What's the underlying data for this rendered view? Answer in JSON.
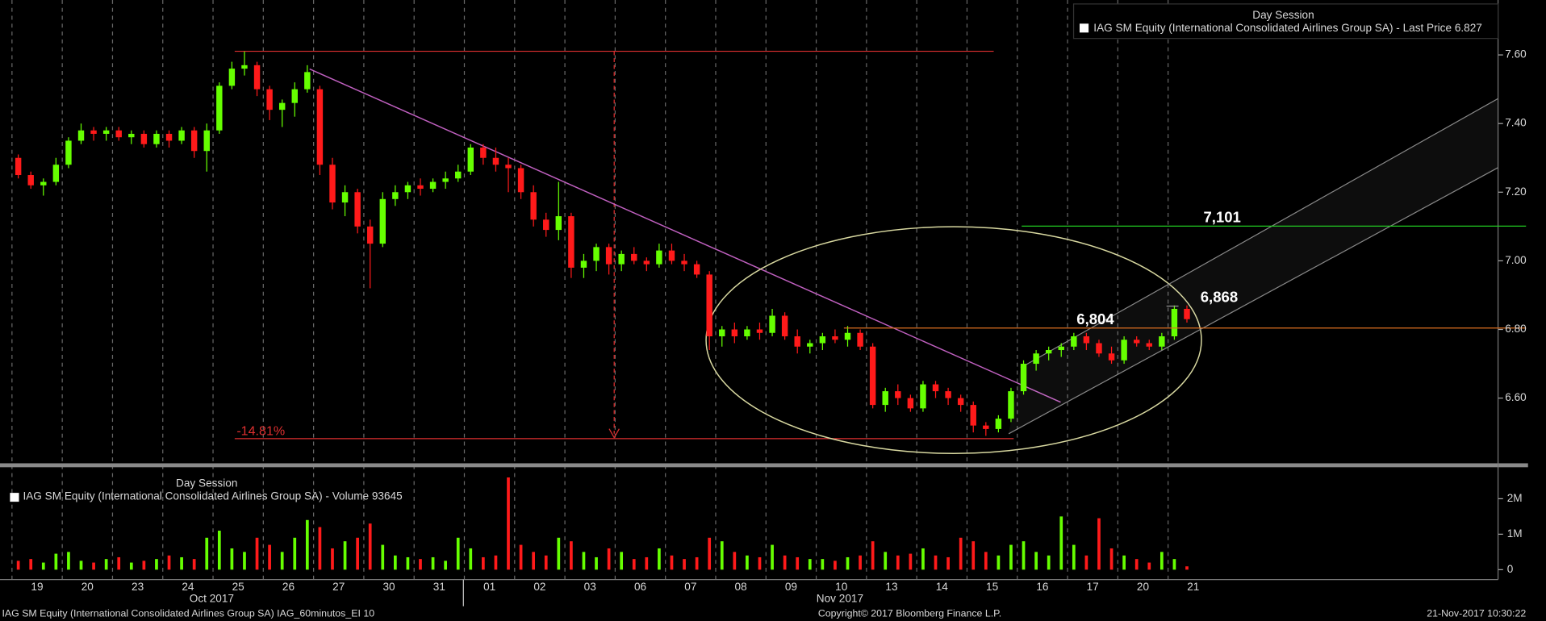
{
  "chart_data": {
    "type": "candlestick",
    "categories": [
      "19",
      "20",
      "23",
      "24",
      "25",
      "26",
      "27",
      "30",
      "31",
      "01",
      "02",
      "03",
      "06",
      "07",
      "08",
      "09",
      "10",
      "13",
      "14",
      "15",
      "16",
      "17",
      "20",
      "21"
    ],
    "month_labels": [
      "Oct 2017",
      "Nov 2017"
    ],
    "ohlc": [
      [
        [
          7.3,
          7.31,
          7.24,
          7.25
        ],
        [
          7.25,
          7.26,
          7.21,
          7.22
        ],
        [
          7.22,
          7.24,
          7.19,
          7.23
        ],
        [
          7.23,
          7.3,
          7.22,
          7.28
        ]
      ],
      [
        [
          7.28,
          7.36,
          7.27,
          7.35
        ],
        [
          7.35,
          7.4,
          7.34,
          7.38
        ],
        [
          7.38,
          7.39,
          7.35,
          7.37
        ],
        [
          7.37,
          7.39,
          7.35,
          7.38
        ]
      ],
      [
        [
          7.38,
          7.39,
          7.35,
          7.36
        ],
        [
          7.36,
          7.38,
          7.34,
          7.37
        ],
        [
          7.37,
          7.38,
          7.33,
          7.34
        ],
        [
          7.34,
          7.38,
          7.33,
          7.37
        ]
      ],
      [
        [
          7.37,
          7.38,
          7.33,
          7.35
        ],
        [
          7.35,
          7.39,
          7.34,
          7.38
        ],
        [
          7.38,
          7.39,
          7.3,
          7.32
        ],
        [
          7.32,
          7.4,
          7.26,
          7.38
        ]
      ],
      [
        [
          7.38,
          7.52,
          7.37,
          7.51
        ],
        [
          7.51,
          7.58,
          7.5,
          7.56
        ],
        [
          7.56,
          7.61,
          7.54,
          7.57
        ],
        [
          7.57,
          7.58,
          7.48,
          7.5
        ]
      ],
      [
        [
          7.5,
          7.51,
          7.41,
          7.44
        ],
        [
          7.44,
          7.47,
          7.39,
          7.46
        ],
        [
          7.46,
          7.52,
          7.42,
          7.5
        ],
        [
          7.5,
          7.57,
          7.49,
          7.55
        ]
      ],
      [
        [
          7.5,
          7.51,
          7.25,
          7.28
        ],
        [
          7.28,
          7.3,
          7.15,
          7.17
        ],
        [
          7.17,
          7.22,
          7.13,
          7.2
        ],
        [
          7.2,
          7.21,
          7.08,
          7.1
        ]
      ],
      [
        [
          7.1,
          7.12,
          6.92,
          7.05
        ],
        [
          7.05,
          7.2,
          7.04,
          7.18
        ],
        [
          7.18,
          7.22,
          7.16,
          7.2
        ],
        [
          7.2,
          7.23,
          7.18,
          7.22
        ]
      ],
      [
        [
          7.22,
          7.24,
          7.19,
          7.21
        ],
        [
          7.21,
          7.24,
          7.2,
          7.23
        ],
        [
          7.23,
          7.26,
          7.21,
          7.24
        ],
        [
          7.24,
          7.28,
          7.23,
          7.26
        ]
      ],
      [
        [
          7.26,
          7.34,
          7.25,
          7.33
        ],
        [
          7.33,
          7.34,
          7.28,
          7.3
        ],
        [
          7.3,
          7.33,
          7.26,
          7.28
        ],
        [
          7.28,
          7.3,
          7.2,
          7.27
        ]
      ],
      [
        [
          7.27,
          7.28,
          7.18,
          7.2
        ],
        [
          7.2,
          7.22,
          7.1,
          7.12
        ],
        [
          7.12,
          7.14,
          7.07,
          7.09
        ],
        [
          7.09,
          7.23,
          7.06,
          7.13
        ]
      ],
      [
        [
          7.13,
          7.14,
          6.95,
          6.98
        ],
        [
          6.98,
          7.02,
          6.95,
          7.0
        ],
        [
          7.0,
          7.05,
          6.97,
          7.04
        ],
        [
          7.04,
          7.05,
          6.96,
          6.99
        ]
      ],
      [
        [
          6.99,
          7.03,
          6.97,
          7.02
        ],
        [
          7.02,
          7.04,
          6.99,
          7.0
        ],
        [
          7.0,
          7.01,
          6.97,
          6.99
        ],
        [
          6.99,
          7.05,
          6.98,
          7.03
        ]
      ],
      [
        [
          7.03,
          7.05,
          6.99,
          7.0
        ],
        [
          7.0,
          7.02,
          6.97,
          6.99
        ],
        [
          6.99,
          7.0,
          6.95,
          6.96
        ],
        [
          6.96,
          6.97,
          6.74,
          6.78
        ]
      ],
      [
        [
          6.78,
          6.81,
          6.75,
          6.8
        ],
        [
          6.8,
          6.82,
          6.76,
          6.78
        ],
        [
          6.78,
          6.81,
          6.77,
          6.8
        ],
        [
          6.8,
          6.82,
          6.77,
          6.79
        ]
      ],
      [
        [
          6.79,
          6.86,
          6.78,
          6.84
        ],
        [
          6.84,
          6.85,
          6.77,
          6.78
        ],
        [
          6.78,
          6.8,
          6.73,
          6.75
        ],
        [
          6.75,
          6.77,
          6.73,
          6.76
        ]
      ],
      [
        [
          6.76,
          6.79,
          6.74,
          6.78
        ],
        [
          6.78,
          6.8,
          6.76,
          6.77
        ],
        [
          6.77,
          6.81,
          6.75,
          6.79
        ],
        [
          6.79,
          6.8,
          6.74,
          6.75
        ]
      ],
      [
        [
          6.75,
          6.76,
          6.57,
          6.58
        ],
        [
          6.58,
          6.63,
          6.56,
          6.62
        ],
        [
          6.62,
          6.64,
          6.58,
          6.6
        ],
        [
          6.6,
          6.61,
          6.56,
          6.57
        ]
      ],
      [
        [
          6.57,
          6.65,
          6.56,
          6.64
        ],
        [
          6.64,
          6.65,
          6.6,
          6.62
        ],
        [
          6.62,
          6.63,
          6.58,
          6.6
        ],
        [
          6.6,
          6.61,
          6.56,
          6.58
        ]
      ],
      [
        [
          6.58,
          6.59,
          6.5,
          6.52
        ],
        [
          6.52,
          6.53,
          6.49,
          6.51
        ],
        [
          6.51,
          6.55,
          6.5,
          6.54
        ],
        [
          6.54,
          6.63,
          6.53,
          6.62
        ]
      ],
      [
        [
          6.62,
          6.71,
          6.61,
          6.7
        ],
        [
          6.7,
          6.74,
          6.68,
          6.73
        ],
        [
          6.73,
          6.75,
          6.71,
          6.74
        ],
        [
          6.74,
          6.76,
          6.72,
          6.75
        ]
      ],
      [
        [
          6.75,
          6.79,
          6.74,
          6.78
        ],
        [
          6.78,
          6.79,
          6.74,
          6.76
        ],
        [
          6.76,
          6.77,
          6.72,
          6.73
        ],
        [
          6.73,
          6.75,
          6.7,
          6.71
        ]
      ],
      [
        [
          6.71,
          6.78,
          6.7,
          6.77
        ],
        [
          6.77,
          6.78,
          6.75,
          6.76
        ],
        [
          6.76,
          6.77,
          6.74,
          6.75
        ],
        [
          6.75,
          6.79,
          6.74,
          6.78
        ]
      ],
      [
        [
          6.78,
          6.87,
          6.77,
          6.86
        ],
        [
          6.86,
          6.87,
          6.82,
          6.83
        ]
      ]
    ],
    "volume": [
      [
        250000,
        300000,
        200000,
        450000
      ],
      [
        500000,
        250000,
        200000,
        300000
      ],
      [
        350000,
        200000,
        250000,
        300000
      ],
      [
        400000,
        350000,
        300000,
        900000
      ],
      [
        1100000,
        600000,
        500000,
        900000
      ],
      [
        700000,
        500000,
        900000,
        1400000
      ],
      [
        1200000,
        600000,
        800000,
        900000
      ],
      [
        1300000,
        700000,
        400000,
        350000
      ],
      [
        300000,
        350000,
        250000,
        900000
      ],
      [
        600000,
        350000,
        400000,
        2600000
      ],
      [
        700000,
        500000,
        400000,
        900000
      ],
      [
        800000,
        500000,
        350000,
        600000
      ],
      [
        500000,
        300000,
        350000,
        600000
      ],
      [
        400000,
        300000,
        350000,
        900000
      ],
      [
        800000,
        500000,
        400000,
        350000
      ],
      [
        700000,
        400000,
        350000,
        300000
      ],
      [
        300000,
        250000,
        350000,
        400000
      ],
      [
        800000,
        500000,
        400000,
        450000
      ],
      [
        600000,
        400000,
        350000,
        900000
      ],
      [
        800000,
        500000,
        400000,
        700000
      ],
      [
        800000,
        500000,
        400000,
        1500000
      ],
      [
        700000,
        400000,
        1450000,
        600000
      ],
      [
        400000,
        300000,
        200000,
        500000
      ],
      [
        300000,
        93645
      ]
    ],
    "up_color": "#66ff00",
    "down_color": "#ff1a1a",
    "ylim": [
      6.41,
      7.76
    ],
    "yticks": [
      {
        "value": 6.6,
        "label": "6.60"
      },
      {
        "value": 6.8,
        "label": "6.80"
      },
      {
        "value": 7.0,
        "label": "7.00"
      },
      {
        "value": 7.2,
        "label": "7.20"
      },
      {
        "value": 7.4,
        "label": "7.40"
      },
      {
        "value": 7.6,
        "label": "7.60"
      }
    ],
    "volume_ylim": [
      -280000,
      2860000
    ],
    "volume_yticks": [
      0,
      {
        "value": 1000000,
        "label": "1M"
      },
      {
        "value": 2000000,
        "label": "2M"
      }
    ],
    "price_legend": {
      "title": "Day Session",
      "text": "IAG SM Equity (International Consolidated Airlines Group SA) - Last Price 6.827"
    },
    "volume_legend": {
      "title": "Day Session",
      "text": "IAG SM Equity (International Consolidated Airlines Group SA) - Volume 93645"
    },
    "annotations": [
      {
        "label": "7,101",
        "value": 7.101
      },
      {
        "label": "6,868",
        "value": 6.868
      },
      {
        "label": "6,804",
        "value": 6.804
      }
    ],
    "change_label": "-14.81%"
  },
  "footer": {
    "left": "IAG SM Equity (International Consolidated Airlines Group SA) IAG_60minutos_EI 10",
    "center": "Copyright© 2017 Bloomberg Finance L.P.",
    "right": "21-Nov-2017 10:30:22"
  }
}
